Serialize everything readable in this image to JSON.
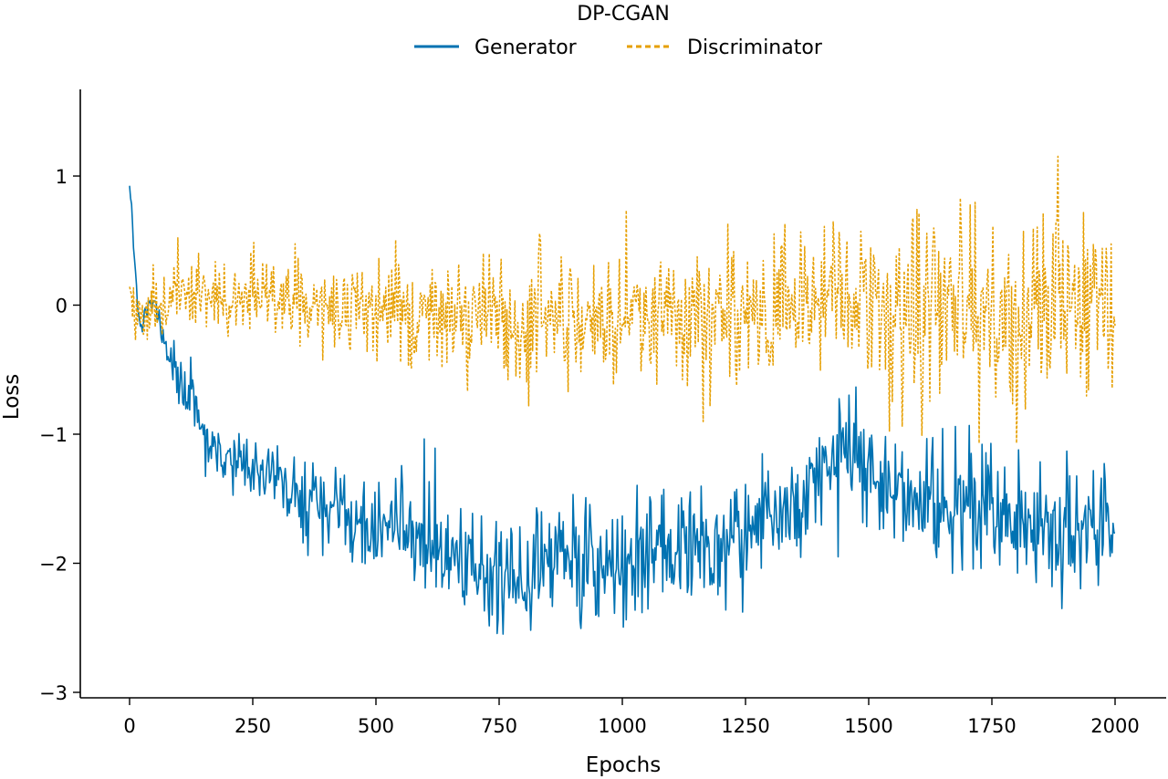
{
  "chart_data": {
    "type": "line",
    "title": "",
    "legend_title": "DP-CGAN",
    "legend_position": "top-center",
    "xlabel": "Epochs",
    "ylabel": "Loss",
    "xlim": [
      -100,
      2100
    ],
    "ylim": [
      -3.05,
      1.65
    ],
    "xticks": [
      0,
      250,
      500,
      750,
      1000,
      1250,
      1500,
      1750,
      2000
    ],
    "yticks": [
      -3,
      -2,
      -1,
      0,
      1
    ],
    "ytick_labels": [
      "−3",
      "−2",
      "−1",
      "0",
      "1"
    ],
    "grid": false,
    "series": [
      {
        "name": "Generator",
        "color": "#0072B2",
        "style": "solid",
        "x": [
          0,
          5,
          10,
          15,
          20,
          25,
          30,
          40,
          50,
          60,
          70,
          80,
          100,
          120,
          140,
          160,
          180,
          200,
          225,
          250,
          275,
          300,
          350,
          400,
          450,
          500,
          550,
          600,
          650,
          700,
          750,
          800,
          850,
          900,
          950,
          1000,
          1050,
          1100,
          1150,
          1200,
          1250,
          1300,
          1350,
          1400,
          1450,
          1475,
          1500,
          1550,
          1600,
          1650,
          1700,
          1750,
          1800,
          1850,
          1900,
          1950,
          2000
        ],
        "mean": [
          0.9,
          0.7,
          0.35,
          0.05,
          -0.15,
          -0.2,
          -0.1,
          0.0,
          0.05,
          -0.1,
          -0.25,
          -0.45,
          -0.6,
          -0.75,
          -0.9,
          -1.0,
          -1.1,
          -1.2,
          -1.25,
          -1.3,
          -1.35,
          -1.4,
          -1.5,
          -1.6,
          -1.65,
          -1.72,
          -1.78,
          -1.85,
          -1.95,
          -2.02,
          -2.05,
          -2.05,
          -2.0,
          -1.98,
          -2.0,
          -1.98,
          -1.92,
          -1.88,
          -1.87,
          -1.85,
          -1.8,
          -1.7,
          -1.55,
          -1.3,
          -1.2,
          -1.15,
          -1.3,
          -1.45,
          -1.5,
          -1.52,
          -1.55,
          -1.55,
          -1.6,
          -1.65,
          -1.8,
          -1.75,
          -1.65
        ],
        "noise": [
          0.02,
          0.04,
          0.05,
          0.05,
          0.05,
          0.05,
          0.05,
          0.05,
          0.06,
          0.06,
          0.08,
          0.1,
          0.12,
          0.14,
          0.15,
          0.15,
          0.16,
          0.16,
          0.16,
          0.16,
          0.17,
          0.18,
          0.18,
          0.2,
          0.2,
          0.22,
          0.22,
          0.24,
          0.24,
          0.26,
          0.26,
          0.26,
          0.26,
          0.27,
          0.27,
          0.27,
          0.27,
          0.27,
          0.26,
          0.26,
          0.26,
          0.26,
          0.26,
          0.26,
          0.26,
          0.3,
          0.26,
          0.26,
          0.26,
          0.27,
          0.27,
          0.27,
          0.3,
          0.33,
          0.33,
          0.3,
          0.3
        ],
        "seed": 7
      },
      {
        "name": "Discriminator",
        "color": "#E69F00",
        "style": "dashed",
        "x": [
          0,
          25,
          50,
          75,
          100,
          150,
          200,
          250,
          300,
          350,
          400,
          450,
          500,
          550,
          600,
          650,
          700,
          750,
          800,
          850,
          900,
          950,
          1000,
          1050,
          1100,
          1150,
          1200,
          1250,
          1300,
          1350,
          1400,
          1450,
          1500,
          1550,
          1600,
          1650,
          1700,
          1750,
          1800,
          1850,
          1900,
          1950,
          2000
        ],
        "mean": [
          0.0,
          -0.1,
          0.0,
          0.05,
          0.05,
          0.05,
          0.05,
          0.05,
          0.02,
          0.0,
          0.0,
          -0.02,
          -0.05,
          -0.05,
          -0.08,
          -0.1,
          -0.1,
          -0.12,
          -0.12,
          -0.1,
          -0.1,
          -0.08,
          -0.08,
          -0.08,
          -0.08,
          -0.08,
          -0.06,
          -0.06,
          -0.06,
          -0.05,
          -0.05,
          -0.05,
          -0.05,
          -0.05,
          -0.05,
          -0.05,
          -0.05,
          -0.05,
          -0.05,
          -0.05,
          -0.05,
          -0.05,
          -0.05
        ],
        "noise": [
          0.1,
          0.12,
          0.14,
          0.14,
          0.15,
          0.15,
          0.16,
          0.16,
          0.17,
          0.18,
          0.2,
          0.22,
          0.25,
          0.26,
          0.28,
          0.3,
          0.3,
          0.3,
          0.3,
          0.3,
          0.3,
          0.3,
          0.3,
          0.3,
          0.32,
          0.33,
          0.33,
          0.33,
          0.33,
          0.34,
          0.35,
          0.37,
          0.4,
          0.42,
          0.42,
          0.42,
          0.42,
          0.42,
          0.43,
          0.45,
          0.45,
          0.45,
          0.48
        ],
        "seed": 19
      }
    ]
  }
}
